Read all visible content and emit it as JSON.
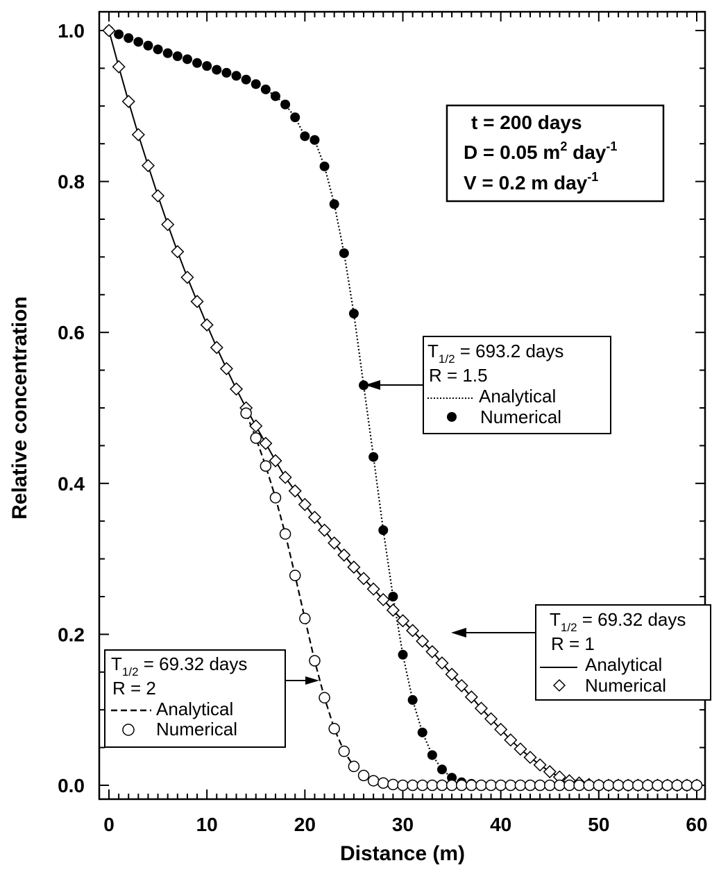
{
  "chart_data": {
    "type": "line",
    "xlabel": "Distance (m)",
    "ylabel": "Relative concentration",
    "xlim": [
      0,
      60
    ],
    "ylim": [
      0,
      1
    ],
    "x_ticks": [
      "0",
      "10",
      "20",
      "30",
      "40",
      "50",
      "60"
    ],
    "y_ticks": [
      "0.0",
      "0.2",
      "0.4",
      "0.6",
      "0.8",
      "1.0"
    ],
    "grid": false,
    "params": {
      "t": "t = 200 days",
      "D_base": "D = 0.05 m",
      "D_sup1": "2",
      "D_mid": " day",
      "D_sup2": "-1",
      "V_base": "V = 0.2 m day",
      "V_sup": "-1"
    },
    "legends": [
      {
        "series": "R=1.5",
        "half_life_prefix": "T",
        "half_life_sub": "1/2",
        "half_life_value": " = 693.2 days",
        "r_label": "R  = 1.5",
        "analytical_label": "Analytical",
        "numerical_label": "Numerical"
      },
      {
        "series": "R=1",
        "half_life_prefix": "T",
        "half_life_sub": "1/2",
        "half_life_value": " = 69.32 days",
        "r_label": "R  = 1",
        "analytical_label": "Analytical",
        "numerical_label": "Numerical"
      },
      {
        "series": "R=2",
        "half_life_prefix": "T",
        "half_life_sub": "1/2",
        "half_life_value": " = 69.32 days",
        "r_label": "R  = 2",
        "analytical_label": "Analytical",
        "numerical_label": "Numerical"
      }
    ],
    "series": [
      {
        "id": "R=1.5",
        "line_style": "dotted",
        "marker": "filled-circle",
        "x": [
          0,
          1,
          2,
          3,
          4,
          5,
          6,
          7,
          8,
          9,
          10,
          11,
          12,
          13,
          14,
          15,
          16,
          17,
          18,
          19,
          20,
          21,
          22,
          23,
          24,
          25,
          26,
          27,
          28,
          29,
          30,
          31,
          32,
          33,
          34,
          35,
          36,
          37,
          38,
          39,
          40,
          41,
          42,
          43,
          44,
          45,
          46,
          47,
          48,
          49,
          50,
          51,
          52,
          53,
          54,
          55,
          56,
          57,
          58,
          59,
          60
        ],
        "values": [
          1.0,
          0.995,
          0.99,
          0.985,
          0.98,
          0.975,
          0.97,
          0.966,
          0.962,
          0.957,
          0.953,
          0.948,
          0.944,
          0.94,
          0.935,
          0.929,
          0.922,
          0.913,
          0.902,
          0.885,
          0.86,
          0.855,
          0.82,
          0.77,
          0.705,
          0.625,
          0.53,
          0.435,
          0.338,
          0.25,
          0.173,
          0.113,
          0.07,
          0.04,
          0.021,
          0.01,
          0.004,
          0.002,
          0.001,
          0.0,
          0.0,
          0.0,
          0.0,
          0.0,
          0.0,
          0.0,
          0.0,
          0.0,
          0.0,
          0.0,
          0.0,
          0.0,
          0.0,
          0.0,
          0.0,
          0.0,
          0.0,
          0.0,
          0.0,
          0.0,
          0.0
        ]
      },
      {
        "id": "R=1",
        "line_style": "solid",
        "marker": "open-diamond",
        "x": [
          0,
          1,
          2,
          3,
          4,
          5,
          6,
          7,
          8,
          9,
          10,
          11,
          12,
          13,
          14,
          15,
          16,
          17,
          18,
          19,
          20,
          21,
          22,
          23,
          24,
          25,
          26,
          27,
          28,
          29,
          30,
          31,
          32,
          33,
          34,
          35,
          36,
          37,
          38,
          39,
          40,
          41,
          42,
          43,
          44,
          45,
          46,
          47,
          48,
          49,
          50,
          51,
          52,
          53,
          54,
          55,
          56,
          57,
          58,
          59,
          60
        ],
        "values": [
          1.0,
          0.952,
          0.906,
          0.862,
          0.821,
          0.781,
          0.743,
          0.707,
          0.673,
          0.641,
          0.61,
          0.58,
          0.552,
          0.525,
          0.5,
          0.476,
          0.453,
          0.43,
          0.408,
          0.39,
          0.372,
          0.355,
          0.338,
          0.321,
          0.305,
          0.289,
          0.274,
          0.26,
          0.246,
          0.232,
          0.218,
          0.205,
          0.191,
          0.177,
          0.162,
          0.147,
          0.132,
          0.117,
          0.102,
          0.088,
          0.074,
          0.06,
          0.048,
          0.037,
          0.027,
          0.018,
          0.011,
          0.006,
          0.003,
          0.001,
          0.0,
          0.0,
          0.0,
          0.0,
          0.0,
          0.0,
          0.0,
          0.0,
          0.0,
          0.0,
          0.0
        ]
      },
      {
        "id": "R=2",
        "line_style": "dashed",
        "marker": "open-circle",
        "x": [
          14,
          15,
          16,
          17,
          18,
          19,
          20,
          21,
          22,
          23,
          24,
          25,
          26,
          27,
          28,
          29,
          30,
          31,
          32,
          33,
          34,
          35,
          36,
          37,
          38,
          39,
          40,
          41,
          42,
          43,
          44,
          45,
          46,
          47,
          48,
          49,
          50,
          51,
          52,
          53,
          54,
          55,
          56,
          57,
          58,
          59,
          60
        ],
        "values": [
          0.493,
          0.46,
          0.423,
          0.381,
          0.333,
          0.278,
          0.221,
          0.165,
          0.116,
          0.075,
          0.045,
          0.025,
          0.013,
          0.006,
          0.003,
          0.001,
          0.0,
          0.0,
          0.0,
          0.0,
          0.0,
          0.0,
          0.0,
          0.0,
          0.0,
          0.0,
          0.0,
          0.0,
          0.0,
          0.0,
          0.0,
          0.0,
          0.0,
          0.0,
          0.0,
          0.0,
          0.0,
          0.0,
          0.0,
          0.0,
          0.0,
          0.0,
          0.0,
          0.0,
          0.0,
          0.0,
          0.0
        ]
      }
    ]
  }
}
